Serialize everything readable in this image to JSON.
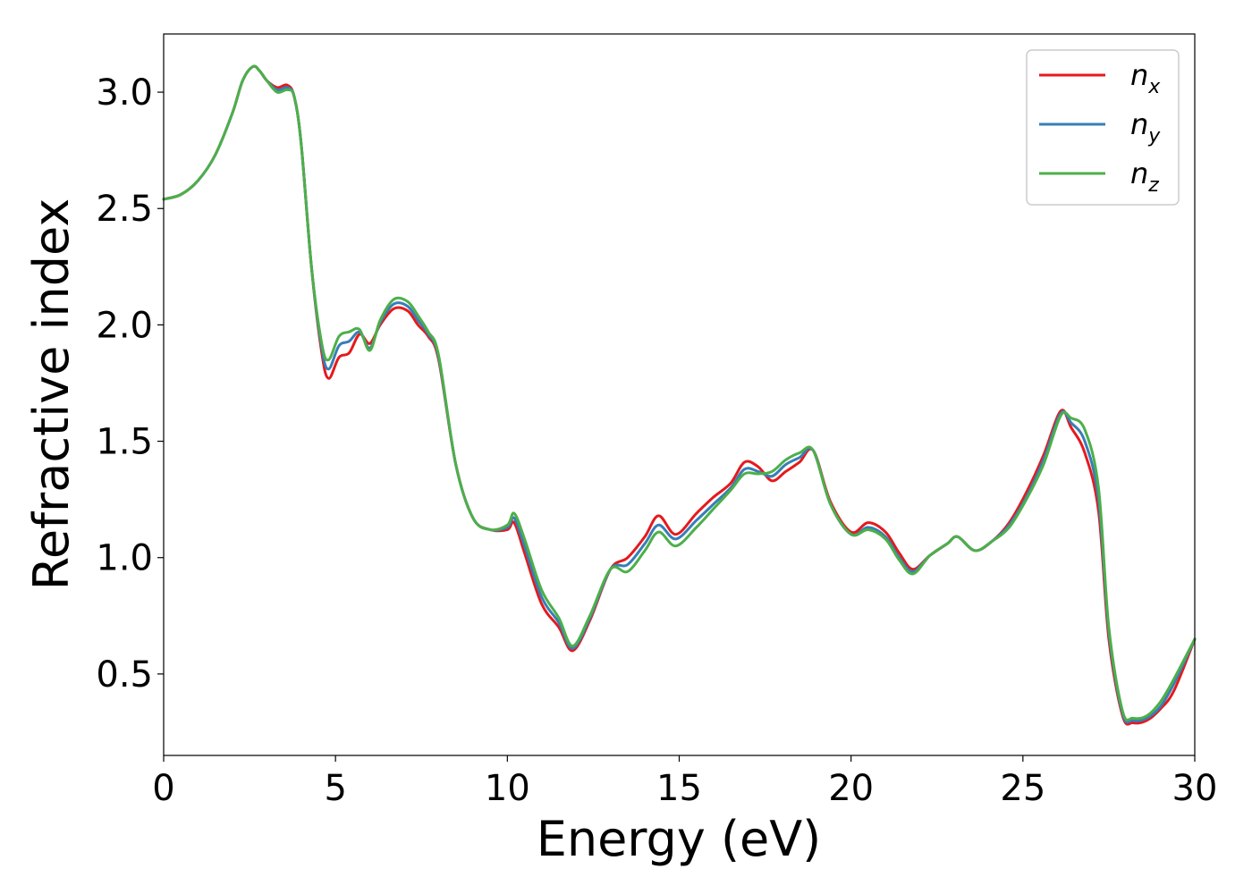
{
  "chart_data": {
    "type": "line",
    "xlabel": "Energy (eV)",
    "ylabel": "Refractive index",
    "xlim": [
      0,
      30
    ],
    "ylim": [
      0.15,
      3.25
    ],
    "xticks": [
      0,
      5,
      10,
      15,
      20,
      25,
      30
    ],
    "xtick_labels": [
      "0",
      "5",
      "10",
      "15",
      "20",
      "25",
      "30"
    ],
    "yticks": [
      0.5,
      1.0,
      1.5,
      2.0,
      2.5,
      3.0
    ],
    "ytick_labels": [
      "0.5",
      "1.0",
      "1.5",
      "2.0",
      "2.5",
      "3.0"
    ],
    "grid": false,
    "legend_position": "top-right",
    "x": [
      0,
      0.5,
      1,
      1.5,
      2,
      2.3,
      2.6,
      2.8,
      3.0,
      3.3,
      3.6,
      3.8,
      4.0,
      4.3,
      4.6,
      4.8,
      5.1,
      5.4,
      5.7,
      6.0,
      6.3,
      6.7,
      7.1,
      7.4,
      7.7,
      8.0,
      8.5,
      9.0,
      9.5,
      10.0,
      10.2,
      10.5,
      11.0,
      11.5,
      11.9,
      12.4,
      13.0,
      13.5,
      14.0,
      14.4,
      14.9,
      15.5,
      16.0,
      16.5,
      16.9,
      17.3,
      17.7,
      18.1,
      18.5,
      18.9,
      19.4,
      20.0,
      20.5,
      21.0,
      21.4,
      21.8,
      22.3,
      22.8,
      23.1,
      23.6,
      24.1,
      24.6,
      25.1,
      25.6,
      26.1,
      26.4,
      26.8,
      27.2,
      27.5,
      27.9,
      28.2,
      28.6,
      29.0,
      29.4,
      30.0
    ],
    "series": [
      {
        "name": "n",
        "sub": "x",
        "color": "#e41a1c",
        "values": [
          2.54,
          2.56,
          2.62,
          2.73,
          2.91,
          3.05,
          3.11,
          3.09,
          3.05,
          3.02,
          3.03,
          2.98,
          2.78,
          2.25,
          1.88,
          1.77,
          1.86,
          1.88,
          1.96,
          1.92,
          2.0,
          2.07,
          2.06,
          2.0,
          1.95,
          1.85,
          1.4,
          1.17,
          1.12,
          1.12,
          1.15,
          1.02,
          0.8,
          0.7,
          0.6,
          0.73,
          0.95,
          1.0,
          1.09,
          1.18,
          1.1,
          1.19,
          1.26,
          1.32,
          1.41,
          1.39,
          1.33,
          1.37,
          1.41,
          1.46,
          1.24,
          1.11,
          1.15,
          1.11,
          1.02,
          0.95,
          1.01,
          1.06,
          1.09,
          1.03,
          1.07,
          1.15,
          1.28,
          1.44,
          1.63,
          1.56,
          1.45,
          1.2,
          0.65,
          0.32,
          0.29,
          0.3,
          0.35,
          0.43,
          0.65
        ]
      },
      {
        "name": "n",
        "sub": "y",
        "color": "#377eb8",
        "values": [
          2.54,
          2.56,
          2.62,
          2.73,
          2.91,
          3.05,
          3.11,
          3.09,
          3.05,
          3.01,
          3.02,
          2.98,
          2.78,
          2.25,
          1.9,
          1.81,
          1.91,
          1.93,
          1.97,
          1.9,
          2.01,
          2.09,
          2.08,
          2.02,
          1.96,
          1.86,
          1.4,
          1.17,
          1.12,
          1.13,
          1.17,
          1.05,
          0.83,
          0.72,
          0.61,
          0.74,
          0.95,
          0.97,
          1.06,
          1.14,
          1.08,
          1.16,
          1.23,
          1.3,
          1.38,
          1.37,
          1.35,
          1.4,
          1.43,
          1.46,
          1.23,
          1.1,
          1.13,
          1.09,
          1.0,
          0.94,
          1.01,
          1.06,
          1.09,
          1.03,
          1.07,
          1.14,
          1.26,
          1.42,
          1.62,
          1.58,
          1.5,
          1.25,
          0.68,
          0.33,
          0.3,
          0.31,
          0.36,
          0.46,
          0.65
        ]
      },
      {
        "name": "n",
        "sub": "z",
        "color": "#4daf4a",
        "values": [
          2.54,
          2.56,
          2.62,
          2.73,
          2.91,
          3.05,
          3.11,
          3.09,
          3.05,
          3.0,
          3.01,
          2.98,
          2.78,
          2.25,
          1.92,
          1.85,
          1.95,
          1.97,
          1.98,
          1.89,
          2.02,
          2.11,
          2.1,
          2.04,
          1.97,
          1.87,
          1.4,
          1.17,
          1.12,
          1.14,
          1.19,
          1.08,
          0.86,
          0.74,
          0.62,
          0.75,
          0.95,
          0.94,
          1.03,
          1.11,
          1.05,
          1.13,
          1.21,
          1.29,
          1.36,
          1.36,
          1.37,
          1.42,
          1.45,
          1.46,
          1.23,
          1.1,
          1.12,
          1.08,
          0.99,
          0.93,
          1.01,
          1.06,
          1.09,
          1.03,
          1.07,
          1.13,
          1.25,
          1.4,
          1.61,
          1.6,
          1.55,
          1.3,
          0.7,
          0.34,
          0.31,
          0.32,
          0.38,
          0.48,
          0.65
        ]
      }
    ]
  }
}
